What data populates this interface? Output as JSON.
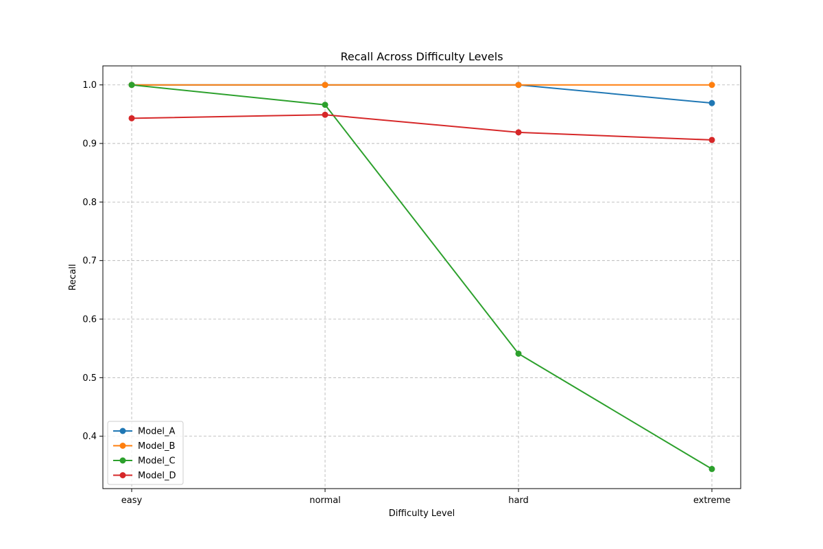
{
  "chart_data": {
    "type": "line",
    "title": "Recall Across Difficulty Levels",
    "xlabel": "Difficulty Level",
    "ylabel": "Recall",
    "categories": [
      "easy",
      "normal",
      "hard",
      "extreme"
    ],
    "ylim": [
      0.3105,
      1.0325
    ],
    "yticks": [
      0.4,
      0.5,
      0.6,
      0.7,
      0.8,
      0.9,
      1.0
    ],
    "ytick_labels": [
      "0.4",
      "0.5",
      "0.6",
      "0.7",
      "0.8",
      "0.9",
      "1.0"
    ],
    "grid": true,
    "legend_position": "lower-left",
    "series": [
      {
        "name": "Model_A",
        "color": "#1f77b4",
        "values": [
          1.0,
          1.0,
          1.0,
          0.969
        ]
      },
      {
        "name": "Model_B",
        "color": "#ff7f0e",
        "values": [
          1.0,
          1.0,
          1.0,
          1.0
        ]
      },
      {
        "name": "Model_C",
        "color": "#2ca02c",
        "values": [
          1.0,
          0.966,
          0.541,
          0.344
        ]
      },
      {
        "name": "Model_D",
        "color": "#d62728",
        "values": [
          0.943,
          0.949,
          0.919,
          0.906
        ]
      }
    ]
  }
}
